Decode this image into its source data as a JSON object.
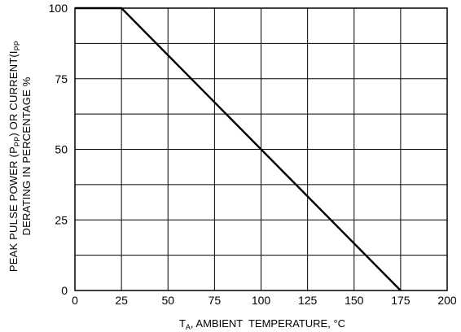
{
  "chart_data": {
    "type": "line",
    "title": "",
    "xlabel": {
      "prefix": "T",
      "sub": "A",
      "text": ", AMBIENT  TEMPERATURE, °C"
    },
    "ylabel": {
      "line1": {
        "pre": "PEAK PULSE POWER (P",
        "sub1": "PP",
        "mid": ") OR CURRENT(I",
        "sub2": "PP"
      },
      "line2": "DERATING IN PERCENTAGE %"
    },
    "xlim": [
      0,
      200
    ],
    "ylim": [
      0,
      100
    ],
    "x_ticks": [
      "0",
      "25",
      "50",
      "75",
      "100",
      "125",
      "150",
      "175",
      "200"
    ],
    "y_ticks": [
      "0",
      "25",
      "50",
      "75",
      "100"
    ],
    "grid": true,
    "series": [
      {
        "x": [
          0,
          25,
          175
        ],
        "y": [
          100,
          100,
          0
        ]
      }
    ],
    "line_color": "#000000",
    "grid_color": "#000000"
  }
}
